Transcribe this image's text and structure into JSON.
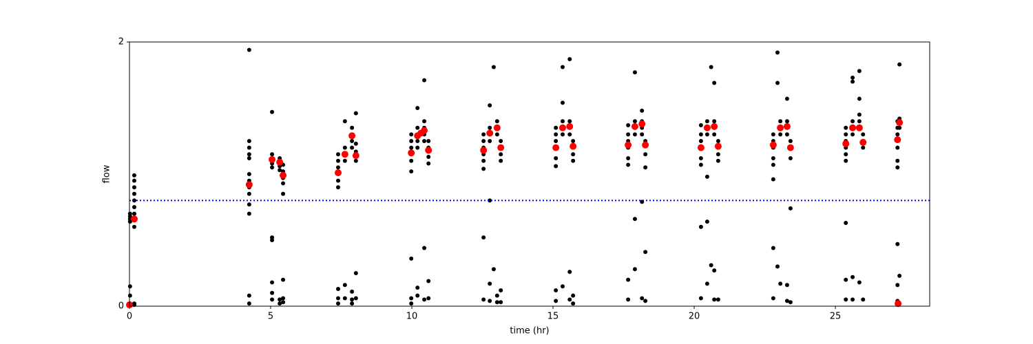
{
  "chart_data": {
    "type": "scatter",
    "x_label": "time (hr)",
    "y_label": "flow",
    "xlim": [
      0,
      28.34
    ],
    "ylim": [
      0,
      2
    ],
    "xticks": [
      0,
      5,
      10,
      15,
      20,
      25
    ],
    "yticks": [
      0,
      2
    ],
    "hline": {
      "value": 0.8,
      "color": "#0000ff"
    },
    "series": [
      {
        "color": "#000000",
        "size": 3,
        "x": [
          0.02,
          0.02,
          0.02,
          0.02,
          0.02,
          0.02,
          0.02,
          0.17,
          0.17,
          0.17,
          0.17,
          0.17,
          0.17,
          0.17,
          0.17,
          0.17,
          0.17,
          0.17,
          4.24,
          4.24,
          4.24,
          4.24,
          4.24,
          4.24,
          4.24,
          4.24,
          4.24,
          4.24,
          4.24,
          4.24,
          4.24,
          5.05,
          5.05,
          5.05,
          5.05,
          5.05,
          5.05,
          5.05,
          5.05,
          5.05,
          5.05,
          5.32,
          5.32,
          5.32,
          5.32,
          5.32,
          5.44,
          5.44,
          5.44,
          5.44,
          5.44,
          5.44,
          5.44,
          5.44,
          7.39,
          7.39,
          7.39,
          7.39,
          7.39,
          7.39,
          7.39,
          7.39,
          7.39,
          7.63,
          7.63,
          7.63,
          7.63,
          7.63,
          7.63,
          7.88,
          7.88,
          7.88,
          7.88,
          7.88,
          7.88,
          7.88,
          8.02,
          8.02,
          8.02,
          8.02,
          8.02,
          8.02,
          9.98,
          9.98,
          9.98,
          9.98,
          9.98,
          9.98,
          9.98,
          9.98,
          9.98,
          10.2,
          10.2,
          10.2,
          10.2,
          10.2,
          10.2,
          10.2,
          10.44,
          10.44,
          10.44,
          10.44,
          10.44,
          10.44,
          10.44,
          10.59,
          10.59,
          10.59,
          10.59,
          10.59,
          10.59,
          12.54,
          12.54,
          12.54,
          12.54,
          12.54,
          12.54,
          12.54,
          12.54,
          12.76,
          12.76,
          12.76,
          12.76,
          12.76,
          12.76,
          12.76,
          12.9,
          12.9,
          13.02,
          13.02,
          13.02,
          13.02,
          13.02,
          13.15,
          13.15,
          13.15,
          13.15,
          13.15,
          13.15,
          15.1,
          15.1,
          15.1,
          15.1,
          15.1,
          15.1,
          15.1,
          15.1,
          15.34,
          15.34,
          15.34,
          15.34,
          15.34,
          15.34,
          15.59,
          15.59,
          15.59,
          15.59,
          15.59,
          15.59,
          15.71,
          15.71,
          15.71,
          15.71,
          15.71,
          17.66,
          17.66,
          17.66,
          17.66,
          17.66,
          17.66,
          17.66,
          17.66,
          17.9,
          17.9,
          17.9,
          17.9,
          17.9,
          17.9,
          18.15,
          18.15,
          18.15,
          18.15,
          18.15,
          18.15,
          18.27,
          18.27,
          18.27,
          18.27,
          18.27,
          20.24,
          20.24,
          20.24,
          20.24,
          20.24,
          20.24,
          20.24,
          20.24,
          20.46,
          20.46,
          20.46,
          20.46,
          20.46,
          20.46,
          20.6,
          20.6,
          20.71,
          20.71,
          20.71,
          20.71,
          20.71,
          20.71,
          20.85,
          20.85,
          20.85,
          20.85,
          22.8,
          22.8,
          22.8,
          22.8,
          22.8,
          22.8,
          22.8,
          22.8,
          22.95,
          22.95,
          22.95,
          23.05,
          23.05,
          23.05,
          23.05,
          23.29,
          23.29,
          23.29,
          23.29,
          23.29,
          23.29,
          23.41,
          23.41,
          23.41,
          23.41,
          23.41,
          25.37,
          25.37,
          25.37,
          25.37,
          25.37,
          25.37,
          25.37,
          25.37,
          25.37,
          25.61,
          25.61,
          25.61,
          25.61,
          25.61,
          25.61,
          25.61,
          25.85,
          25.85,
          25.85,
          25.85,
          25.85,
          25.85,
          25.98,
          25.98,
          25.98,
          25.98,
          27.2,
          27.2,
          27.2,
          27.2,
          27.2,
          27.2,
          27.2,
          27.2,
          27.2,
          27.27,
          27.27,
          27.27,
          27.27,
          27.27
        ],
        "values": [
          0.66,
          0.68,
          0.7,
          0.64,
          0.02,
          0.08,
          0.15,
          0.6,
          0.65,
          0.7,
          0.75,
          0.8,
          0.85,
          0.9,
          0.95,
          0.99,
          0.02,
          0.01,
          0.7,
          0.77,
          0.85,
          0.9,
          0.95,
          1.0,
          1.12,
          1.15,
          1.2,
          1.25,
          1.94,
          0.08,
          0.02,
          1.05,
          1.08,
          1.12,
          1.15,
          1.47,
          0.5,
          0.52,
          0.1,
          0.18,
          0.05,
          1.03,
          1.06,
          1.12,
          0.05,
          0.02,
          0.85,
          0.93,
          0.97,
          1.02,
          1.07,
          0.2,
          0.06,
          0.03,
          0.9,
          0.95,
          1.0,
          1.05,
          1.1,
          1.15,
          0.13,
          0.06,
          0.02,
          1.1,
          1.15,
          1.2,
          1.4,
          0.16,
          0.06,
          1.2,
          1.25,
          1.3,
          1.35,
          0.05,
          0.11,
          0.02,
          1.1,
          1.17,
          1.23,
          1.46,
          0.25,
          0.06,
          1.02,
          1.1,
          1.15,
          1.2,
          1.25,
          1.3,
          0.36,
          0.06,
          0.02,
          1.2,
          1.25,
          1.3,
          1.35,
          1.5,
          0.14,
          0.08,
          1.25,
          1.3,
          1.35,
          1.4,
          1.71,
          0.44,
          0.05,
          1.08,
          1.13,
          1.2,
          1.25,
          0.19,
          0.06,
          1.04,
          1.1,
          1.15,
          1.2,
          1.25,
          1.3,
          0.52,
          0.05,
          1.25,
          1.3,
          1.35,
          1.52,
          0.8,
          0.17,
          0.04,
          1.81,
          0.28,
          1.3,
          1.35,
          1.4,
          0.08,
          0.03,
          1.1,
          1.15,
          1.2,
          1.25,
          0.12,
          0.03,
          1.06,
          1.12,
          1.2,
          1.25,
          1.3,
          1.35,
          0.12,
          0.04,
          1.3,
          1.35,
          1.4,
          1.54,
          1.81,
          0.15,
          1.3,
          1.35,
          1.4,
          1.87,
          0.26,
          0.05,
          1.1,
          1.15,
          1.25,
          0.08,
          0.02,
          1.07,
          1.12,
          1.2,
          1.25,
          1.3,
          1.37,
          0.2,
          0.05,
          1.3,
          1.35,
          1.4,
          1.77,
          0.66,
          0.28,
          1.3,
          1.35,
          1.4,
          1.48,
          0.79,
          0.06,
          1.05,
          1.15,
          1.25,
          0.41,
          0.04,
          1.07,
          1.12,
          1.2,
          1.25,
          1.3,
          1.37,
          0.6,
          0.06,
          0.98,
          1.3,
          1.35,
          1.4,
          0.64,
          0.17,
          1.81,
          0.31,
          1.3,
          1.35,
          1.4,
          1.69,
          0.27,
          0.05,
          1.1,
          1.15,
          1.25,
          0.05,
          0.96,
          1.07,
          1.12,
          1.2,
          1.25,
          1.3,
          0.44,
          0.06,
          1.92,
          1.69,
          0.3,
          1.3,
          1.35,
          1.4,
          0.17,
          1.3,
          1.35,
          1.4,
          1.57,
          0.16,
          0.04,
          0.74,
          1.12,
          1.2,
          1.25,
          0.03,
          1.1,
          1.15,
          1.2,
          1.25,
          1.3,
          1.35,
          0.63,
          0.2,
          0.05,
          1.3,
          1.35,
          1.4,
          1.7,
          1.73,
          0.22,
          0.05,
          1.35,
          1.4,
          1.45,
          1.57,
          1.78,
          0.18,
          1.2,
          1.25,
          1.3,
          0.05,
          1.05,
          1.1,
          1.2,
          1.3,
          1.35,
          1.4,
          0.47,
          0.16,
          0.04,
          1.35,
          1.42,
          1.83,
          0.23,
          0.02
        ]
      },
      {
        "color": "#ff0000",
        "size": 5,
        "x": [
          0.0,
          0.17,
          4.24,
          5.05,
          5.32,
          5.44,
          7.39,
          7.63,
          7.88,
          8.02,
          9.98,
          10.2,
          10.32,
          10.44,
          10.59,
          12.54,
          12.76,
          13.02,
          13.15,
          15.1,
          15.34,
          15.59,
          15.71,
          17.66,
          17.9,
          18.15,
          18.27,
          20.24,
          20.46,
          20.71,
          20.85,
          22.8,
          23.05,
          23.29,
          23.41,
          25.37,
          25.61,
          25.85,
          25.98,
          27.2,
          27.27,
          27.22
        ],
        "values": [
          0.01,
          0.66,
          0.92,
          1.11,
          1.09,
          0.99,
          1.01,
          1.15,
          1.29,
          1.14,
          1.16,
          1.29,
          1.31,
          1.33,
          1.18,
          1.18,
          1.31,
          1.35,
          1.2,
          1.2,
          1.35,
          1.36,
          1.21,
          1.22,
          1.36,
          1.38,
          1.22,
          1.2,
          1.35,
          1.36,
          1.21,
          1.22,
          1.35,
          1.36,
          1.2,
          1.23,
          1.35,
          1.35,
          1.24,
          1.26,
          1.39,
          0.02
        ]
      }
    ]
  }
}
